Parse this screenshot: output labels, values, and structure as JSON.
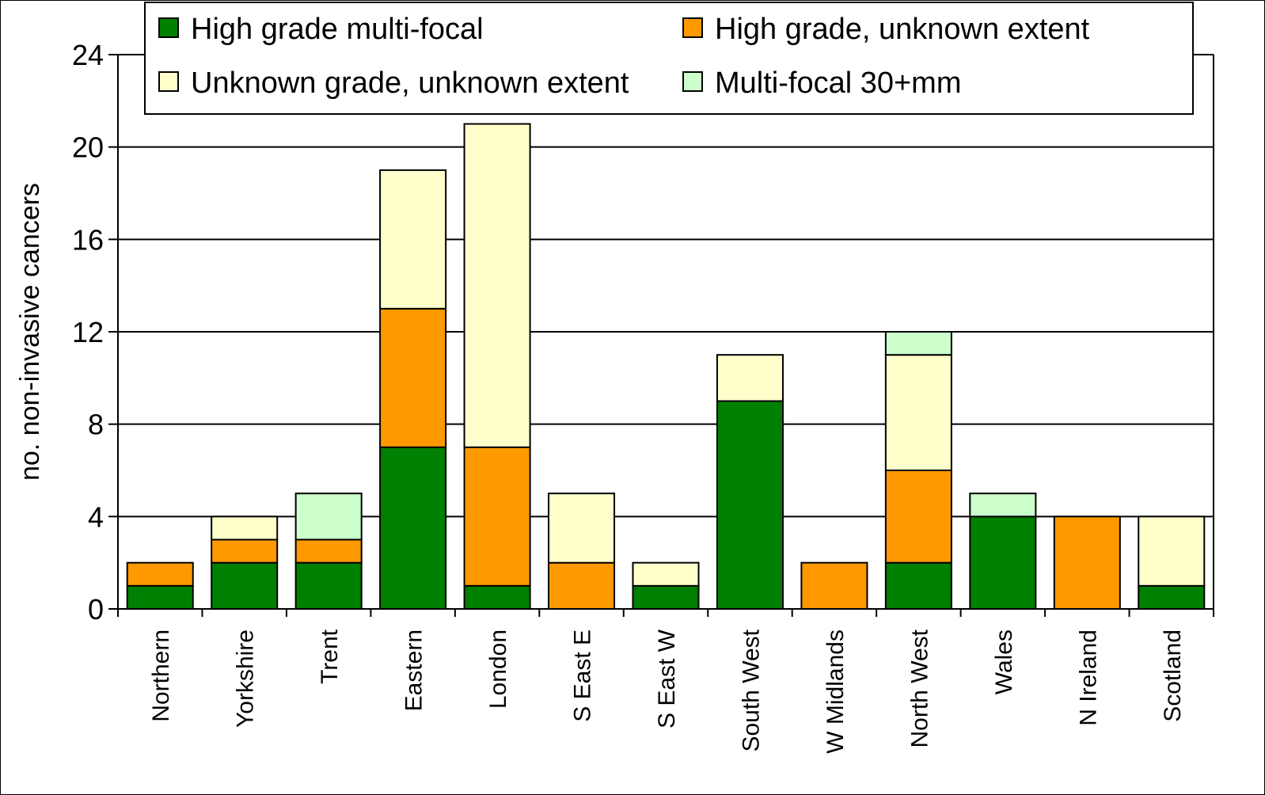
{
  "chart_data": {
    "type": "bar",
    "stacked": true,
    "title": "",
    "xlabel": "",
    "ylabel": "no. non-invasive cancers",
    "ylim": [
      0,
      24
    ],
    "yticks": [
      "0",
      "4",
      "8",
      "12",
      "16",
      "20",
      "24"
    ],
    "grid": true,
    "legend_position": "top",
    "categories": [
      "Northern",
      "Yorkshire",
      "Trent",
      "Eastern",
      "London",
      "S East E",
      "S East W",
      "South West",
      "W Midlands",
      "North West",
      "Wales",
      "N Ireland",
      "Scotland"
    ],
    "series": [
      {
        "name": "High grade multi-focal",
        "color": "#008000",
        "values": [
          1,
          2,
          2,
          7,
          1,
          0,
          1,
          9,
          0,
          2,
          4,
          0,
          1
        ]
      },
      {
        "name": "High grade, unknown extent",
        "color": "#FF9900",
        "values": [
          1,
          1,
          1,
          6,
          6,
          2,
          0,
          0,
          2,
          4,
          0,
          4,
          0
        ]
      },
      {
        "name": "Unknown grade, unknown extent",
        "color": "#FFFFCC",
        "values": [
          0,
          1,
          0,
          6,
          14,
          3,
          1,
          2,
          0,
          5,
          0,
          0,
          3
        ]
      },
      {
        "name": "Multi-focal 30+mm",
        "color": "#CCFFCC",
        "values": [
          0,
          0,
          2,
          0,
          0,
          0,
          0,
          0,
          0,
          1,
          1,
          0,
          0
        ]
      }
    ],
    "legend_layout": [
      [
        0,
        1
      ],
      [
        2,
        3
      ]
    ]
  }
}
